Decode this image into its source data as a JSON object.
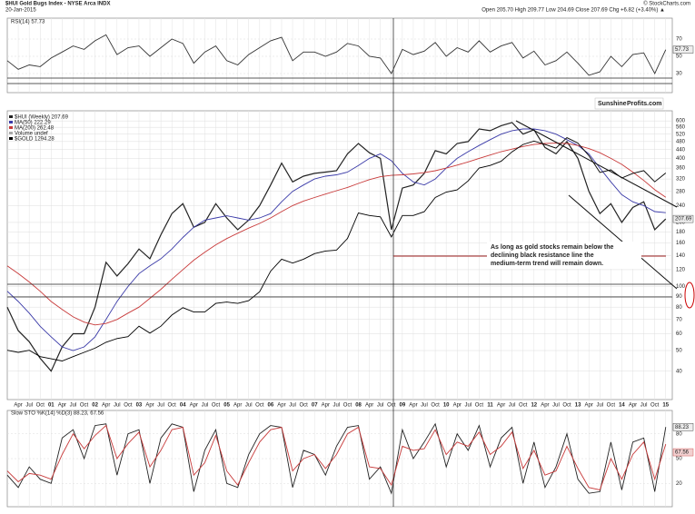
{
  "header": {
    "symbol": "$HUI Gold Bugs Index - NYSE Arca INDX",
    "date": "20-Jan-2015",
    "ohlc": "Open 205.70  High 209.77  Low 204.69  Close 207.69  Chg +6.82 (+3.40%) ▲",
    "credit": "© StockCharts.com"
  },
  "chart_data": [
    {
      "type": "line",
      "title": "RSI(14) 57.73",
      "ylim": [
        10,
        90
      ],
      "yticks": [
        30,
        50,
        70
      ],
      "series": [
        {
          "name": "RSI(14)",
          "color": "#333333",
          "values": [
            45,
            35,
            40,
            38,
            48,
            55,
            62,
            58,
            68,
            75,
            52,
            60,
            62,
            50,
            60,
            70,
            65,
            42,
            55,
            62,
            45,
            40,
            52,
            60,
            68,
            72,
            45,
            55,
            55,
            50,
            55,
            65,
            62,
            50,
            48,
            30,
            58,
            52,
            56,
            66,
            50,
            60,
            55,
            68,
            55,
            62,
            66,
            48,
            56,
            40,
            45,
            55,
            42,
            28,
            32,
            50,
            38,
            52,
            54,
            30,
            57.73
          ]
        }
      ]
    },
    {
      "type": "line",
      "log_scale": true,
      "ylim": [
        30,
        650
      ],
      "y2lim": [
        190,
        2150
      ],
      "yticks": [
        40,
        50,
        60,
        70,
        80,
        90,
        100,
        120,
        140,
        160,
        180,
        200,
        240,
        280,
        320,
        360,
        400,
        440,
        480,
        520,
        560,
        600
      ],
      "xlim": [
        2000.0,
        2015.15
      ],
      "x": [
        2000.0,
        2000.25,
        2000.5,
        2000.75,
        2001.0,
        2001.25,
        2001.5,
        2001.75,
        2002.0,
        2002.25,
        2002.5,
        2002.75,
        2003.0,
        2003.25,
        2003.5,
        2003.75,
        2004.0,
        2004.25,
        2004.5,
        2004.75,
        2005.0,
        2005.25,
        2005.5,
        2005.75,
        2006.0,
        2006.25,
        2006.5,
        2006.75,
        2007.0,
        2007.25,
        2007.5,
        2007.75,
        2008.0,
        2008.25,
        2008.5,
        2008.75,
        2009.0,
        2009.25,
        2009.5,
        2009.75,
        2010.0,
        2010.25,
        2010.5,
        2010.75,
        2011.0,
        2011.25,
        2011.5,
        2011.75,
        2012.0,
        2012.25,
        2012.5,
        2012.75,
        2013.0,
        2013.25,
        2013.5,
        2013.75,
        2014.0,
        2014.25,
        2014.5,
        2014.75,
        2015.0
      ],
      "xticks": [
        {
          "value": 2000.25,
          "label": "Apr"
        },
        {
          "value": 2000.5,
          "label": "Jul"
        },
        {
          "value": 2000.75,
          "label": "Oct"
        },
        {
          "value": 2001,
          "label": "01"
        },
        {
          "value": 2001.25,
          "label": "Apr"
        },
        {
          "value": 2001.5,
          "label": "Jul"
        },
        {
          "value": 2001.75,
          "label": "Oct"
        },
        {
          "value": 2002,
          "label": "02"
        },
        {
          "value": 2002.25,
          "label": "Apr"
        },
        {
          "value": 2002.5,
          "label": "Jul"
        },
        {
          "value": 2002.75,
          "label": "Oct"
        },
        {
          "value": 2003,
          "label": "03"
        },
        {
          "value": 2003.25,
          "label": "Apr"
        },
        {
          "value": 2003.5,
          "label": "Jul"
        },
        {
          "value": 2003.75,
          "label": "Oct"
        },
        {
          "value": 2004,
          "label": "04"
        },
        {
          "value": 2004.25,
          "label": "Apr"
        },
        {
          "value": 2004.5,
          "label": "Jul"
        },
        {
          "value": 2004.75,
          "label": "Oct"
        },
        {
          "value": 2005,
          "label": "05"
        },
        {
          "value": 2005.25,
          "label": "Apr"
        },
        {
          "value": 2005.5,
          "label": "Jul"
        },
        {
          "value": 2005.75,
          "label": "Oct"
        },
        {
          "value": 2006,
          "label": "06"
        },
        {
          "value": 2006.25,
          "label": "Apr"
        },
        {
          "value": 2006.5,
          "label": "Jul"
        },
        {
          "value": 2006.75,
          "label": "Oct"
        },
        {
          "value": 2007,
          "label": "07"
        },
        {
          "value": 2007.25,
          "label": "Apr"
        },
        {
          "value": 2007.5,
          "label": "Jul"
        },
        {
          "value": 2007.75,
          "label": "Oct"
        },
        {
          "value": 2008,
          "label": "08"
        },
        {
          "value": 2008.25,
          "label": "Apr"
        },
        {
          "value": 2008.5,
          "label": "Jul"
        },
        {
          "value": 2008.75,
          "label": "Oct"
        },
        {
          "value": 2009,
          "label": "09"
        },
        {
          "value": 2009.25,
          "label": "Apr"
        },
        {
          "value": 2009.5,
          "label": "Jul"
        },
        {
          "value": 2009.75,
          "label": "Oct"
        },
        {
          "value": 2010,
          "label": "10"
        },
        {
          "value": 2010.25,
          "label": "Apr"
        },
        {
          "value": 2010.5,
          "label": "Jul"
        },
        {
          "value": 2010.75,
          "label": "Oct"
        },
        {
          "value": 2011,
          "label": "11"
        },
        {
          "value": 2011.25,
          "label": "Apr"
        },
        {
          "value": 2011.5,
          "label": "Jul"
        },
        {
          "value": 2011.75,
          "label": "Oct"
        },
        {
          "value": 2012,
          "label": "12"
        },
        {
          "value": 2012.25,
          "label": "Apr"
        },
        {
          "value": 2012.5,
          "label": "Jul"
        },
        {
          "value": 2012.75,
          "label": "Oct"
        },
        {
          "value": 2013,
          "label": "13"
        },
        {
          "value": 2013.25,
          "label": "Apr"
        },
        {
          "value": 2013.5,
          "label": "Jul"
        },
        {
          "value": 2013.75,
          "label": "Oct"
        },
        {
          "value": 2014,
          "label": "14"
        },
        {
          "value": 2014.25,
          "label": "Apr"
        },
        {
          "value": 2014.5,
          "label": "Jul"
        },
        {
          "value": 2014.75,
          "label": "Oct"
        },
        {
          "value": 2015,
          "label": "15"
        }
      ],
      "series": [
        {
          "name": "$HUI (Weekly) 207.69",
          "color": "#222222",
          "values": [
            80,
            62,
            55,
            46,
            40,
            52,
            60,
            60,
            80,
            130,
            112,
            128,
            150,
            135,
            175,
            220,
            245,
            190,
            200,
            245,
            210,
            185,
            205,
            240,
            300,
            380,
            310,
            330,
            340,
            345,
            350,
            420,
            470,
            425,
            400,
            185,
            290,
            300,
            340,
            435,
            420,
            470,
            480,
            550,
            540,
            570,
            590,
            520,
            545,
            450,
            420,
            480,
            400,
            280,
            220,
            245,
            200,
            235,
            250,
            185,
            207.69
          ]
        },
        {
          "name": "MA(50) 222.29",
          "color": "#3a3aa8",
          "values": [
            95,
            85,
            75,
            65,
            58,
            52,
            50,
            52,
            58,
            70,
            85,
            100,
            115,
            125,
            135,
            150,
            170,
            190,
            205,
            210,
            215,
            210,
            205,
            210,
            220,
            250,
            280,
            300,
            320,
            330,
            335,
            345,
            370,
            400,
            420,
            390,
            340,
            310,
            300,
            320,
            360,
            400,
            430,
            460,
            490,
            520,
            540,
            550,
            550,
            540,
            520,
            490,
            460,
            420,
            360,
            310,
            270,
            250,
            240,
            225,
            222.29
          ]
        },
        {
          "name": "MA(200) 262.48",
          "color": "#c83a3a",
          "values": [
            125,
            115,
            105,
            95,
            85,
            78,
            72,
            68,
            66,
            67,
            70,
            75,
            80,
            88,
            97,
            108,
            120,
            133,
            145,
            157,
            168,
            178,
            188,
            198,
            210,
            225,
            240,
            252,
            262,
            272,
            282,
            292,
            305,
            318,
            328,
            333,
            335,
            338,
            343,
            350,
            360,
            372,
            385,
            400,
            415,
            430,
            442,
            455,
            465,
            470,
            472,
            470,
            460,
            445,
            425,
            400,
            375,
            345,
            315,
            285,
            262.48
          ]
        },
        {
          "name": "$GOLD 1294.28",
          "color": "#000000",
          "axis": "y2",
          "values": [
            285,
            280,
            285,
            270,
            265,
            260,
            270,
            280,
            290,
            305,
            315,
            320,
            350,
            330,
            350,
            385,
            410,
            395,
            395,
            425,
            430,
            425,
            435,
            470,
            560,
            620,
            600,
            620,
            650,
            665,
            670,
            740,
            920,
            900,
            890,
            750,
            900,
            900,
            930,
            1050,
            1100,
            1120,
            1210,
            1350,
            1380,
            1430,
            1550,
            1650,
            1700,
            1650,
            1600,
            1750,
            1670,
            1500,
            1300,
            1330,
            1240,
            1290,
            1320,
            1200,
            1294.28
          ]
        }
      ],
      "volume_label": "Volume undef",
      "annotation": [
        "As long as gold stocks remain below the",
        "declining black resistance line the",
        "medium-term trend will remain down."
      ],
      "logo": [
        "Sunshine",
        "Profits.com"
      ]
    },
    {
      "type": "line",
      "title": "Slow STO %K(14) %D(3) 88.23, 67.56",
      "ylim": [
        -5,
        105
      ],
      "yticks": [
        20,
        50,
        80
      ],
      "series": [
        {
          "name": "%K(14)",
          "color": "#222222",
          "values": [
            30,
            15,
            40,
            25,
            20,
            75,
            85,
            50,
            90,
            92,
            30,
            80,
            85,
            20,
            75,
            92,
            88,
            10,
            60,
            85,
            20,
            15,
            55,
            80,
            90,
            88,
            15,
            60,
            55,
            30,
            65,
            88,
            90,
            25,
            40,
            8,
            85,
            50,
            70,
            92,
            40,
            80,
            60,
            90,
            40,
            75,
            88,
            20,
            70,
            15,
            40,
            80,
            25,
            8,
            10,
            70,
            12,
            70,
            75,
            10,
            88.23
          ]
        },
        {
          "name": "%D(3)",
          "color": "#c83a3a",
          "values": [
            35,
            22,
            32,
            30,
            25,
            55,
            80,
            62,
            78,
            90,
            50,
            68,
            82,
            40,
            60,
            85,
            88,
            30,
            45,
            78,
            35,
            18,
            45,
            70,
            85,
            88,
            35,
            50,
            55,
            38,
            55,
            80,
            88,
            40,
            38,
            18,
            65,
            60,
            62,
            85,
            55,
            70,
            65,
            82,
            55,
            65,
            82,
            38,
            60,
            30,
            35,
            65,
            38,
            15,
            12,
            50,
            25,
            55,
            70,
            25,
            67.56
          ]
        }
      ]
    }
  ]
}
